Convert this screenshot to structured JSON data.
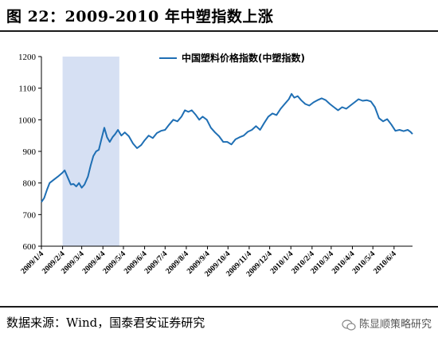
{
  "header": {
    "title": "图 22：2009-2010 年中塑指数上涨"
  },
  "footer": {
    "source": "数据来源：Wind，国泰君安证券研究",
    "watermark": "陈显顺策略研究"
  },
  "chart_data": {
    "type": "line",
    "title": "",
    "xlabel": "",
    "ylabel": "",
    "ylim": [
      600,
      1200
    ],
    "yticks": [
      600,
      700,
      800,
      900,
      1000,
      1100,
      1200
    ],
    "x_tick_labels": [
      "2009/1/4",
      "2009/2/4",
      "2009/3/4",
      "2009/4/4",
      "2009/5/4",
      "2009/6/4",
      "2009/7/4",
      "2009/8/4",
      "2009/9/4",
      "2009/10/4",
      "2009/11/4",
      "2009/12/4",
      "2010/1/4",
      "2010/2/4",
      "2010/3/4",
      "2010/4/4",
      "2010/5/4",
      "2010/6/4"
    ],
    "x_range": [
      "2009/1/4",
      "2010/7/1"
    ],
    "shaded_range": [
      "2009/2/4",
      "2009/4/28"
    ],
    "shaded_color": "#d6e0f3",
    "grid": false,
    "legend": "top-center",
    "series": [
      {
        "name": "中国塑料价格指数(中塑指数)",
        "color": "#1f6fb4",
        "points": [
          [
            "2009/1/4",
            740
          ],
          [
            "2009/1/8",
            752
          ],
          [
            "2009/1/12",
            778
          ],
          [
            "2009/1/16",
            800
          ],
          [
            "2009/1/22",
            810
          ],
          [
            "2009/1/28",
            820
          ],
          [
            "2009/2/4",
            833
          ],
          [
            "2009/2/7",
            840
          ],
          [
            "2009/2/11",
            820
          ],
          [
            "2009/2/16",
            795
          ],
          [
            "2009/2/20",
            797
          ],
          [
            "2009/2/24",
            789
          ],
          [
            "2009/2/28",
            800
          ],
          [
            "2009/3/4",
            785
          ],
          [
            "2009/3/8",
            795
          ],
          [
            "2009/3/13",
            820
          ],
          [
            "2009/3/17",
            855
          ],
          [
            "2009/3/21",
            885
          ],
          [
            "2009/3/25",
            900
          ],
          [
            "2009/3/29",
            905
          ],
          [
            "2009/4/2",
            940
          ],
          [
            "2009/4/6",
            975
          ],
          [
            "2009/4/10",
            945
          ],
          [
            "2009/4/14",
            930
          ],
          [
            "2009/4/18",
            945
          ],
          [
            "2009/4/22",
            955
          ],
          [
            "2009/4/26",
            968
          ],
          [
            "2009/5/1",
            950
          ],
          [
            "2009/5/6",
            960
          ],
          [
            "2009/5/12",
            948
          ],
          [
            "2009/5/18",
            925
          ],
          [
            "2009/5/24",
            910
          ],
          [
            "2009/5/30",
            920
          ],
          [
            "2009/6/4",
            935
          ],
          [
            "2009/6/10",
            950
          ],
          [
            "2009/6/16",
            942
          ],
          [
            "2009/6/22",
            958
          ],
          [
            "2009/6/28",
            965
          ],
          [
            "2009/7/4",
            968
          ],
          [
            "2009/7/10",
            985
          ],
          [
            "2009/7/16",
            1000
          ],
          [
            "2009/7/22",
            995
          ],
          [
            "2009/7/28",
            1010
          ],
          [
            "2009/8/2",
            1030
          ],
          [
            "2009/8/7",
            1025
          ],
          [
            "2009/8/12",
            1030
          ],
          [
            "2009/8/18",
            1015
          ],
          [
            "2009/8/23",
            1000
          ],
          [
            "2009/8/28",
            1010
          ],
          [
            "2009/9/3",
            1000
          ],
          [
            "2009/9/9",
            975
          ],
          [
            "2009/9/15",
            960
          ],
          [
            "2009/9/21",
            948
          ],
          [
            "2009/9/27",
            930
          ],
          [
            "2009/10/3",
            930
          ],
          [
            "2009/10/9",
            922
          ],
          [
            "2009/10/15",
            938
          ],
          [
            "2009/10/21",
            945
          ],
          [
            "2009/10/27",
            950
          ],
          [
            "2009/11/2",
            962
          ],
          [
            "2009/11/8",
            968
          ],
          [
            "2009/11/14",
            980
          ],
          [
            "2009/11/20",
            968
          ],
          [
            "2009/11/26",
            990
          ],
          [
            "2009/12/2",
            1010
          ],
          [
            "2009/12/8",
            1020
          ],
          [
            "2009/12/14",
            1015
          ],
          [
            "2009/12/20",
            1035
          ],
          [
            "2009/12/26",
            1050
          ],
          [
            "2010/1/1",
            1065
          ],
          [
            "2010/1/5",
            1082
          ],
          [
            "2010/1/9",
            1070
          ],
          [
            "2010/1/14",
            1075
          ],
          [
            "2010/1/19",
            1062
          ],
          [
            "2010/1/25",
            1050
          ],
          [
            "2010/1/31",
            1045
          ],
          [
            "2010/2/6",
            1055
          ],
          [
            "2010/2/12",
            1062
          ],
          [
            "2010/2/18",
            1068
          ],
          [
            "2010/2/24",
            1062
          ],
          [
            "2010/3/2",
            1050
          ],
          [
            "2010/3/8",
            1040
          ],
          [
            "2010/3/14",
            1030
          ],
          [
            "2010/3/20",
            1040
          ],
          [
            "2010/3/26",
            1035
          ],
          [
            "2010/4/1",
            1045
          ],
          [
            "2010/4/7",
            1055
          ],
          [
            "2010/4/13",
            1065
          ],
          [
            "2010/4/19",
            1060
          ],
          [
            "2010/4/25",
            1062
          ],
          [
            "2010/5/1",
            1058
          ],
          [
            "2010/5/7",
            1040
          ],
          [
            "2010/5/13",
            1005
          ],
          [
            "2010/5/19",
            995
          ],
          [
            "2010/5/25",
            1002
          ],
          [
            "2010/5/31",
            985
          ],
          [
            "2010/6/6",
            965
          ],
          [
            "2010/6/12",
            968
          ],
          [
            "2010/6/18",
            964
          ],
          [
            "2010/6/24",
            968
          ],
          [
            "2010/6/28",
            962
          ],
          [
            "2010/7/1",
            955
          ]
        ]
      }
    ]
  }
}
